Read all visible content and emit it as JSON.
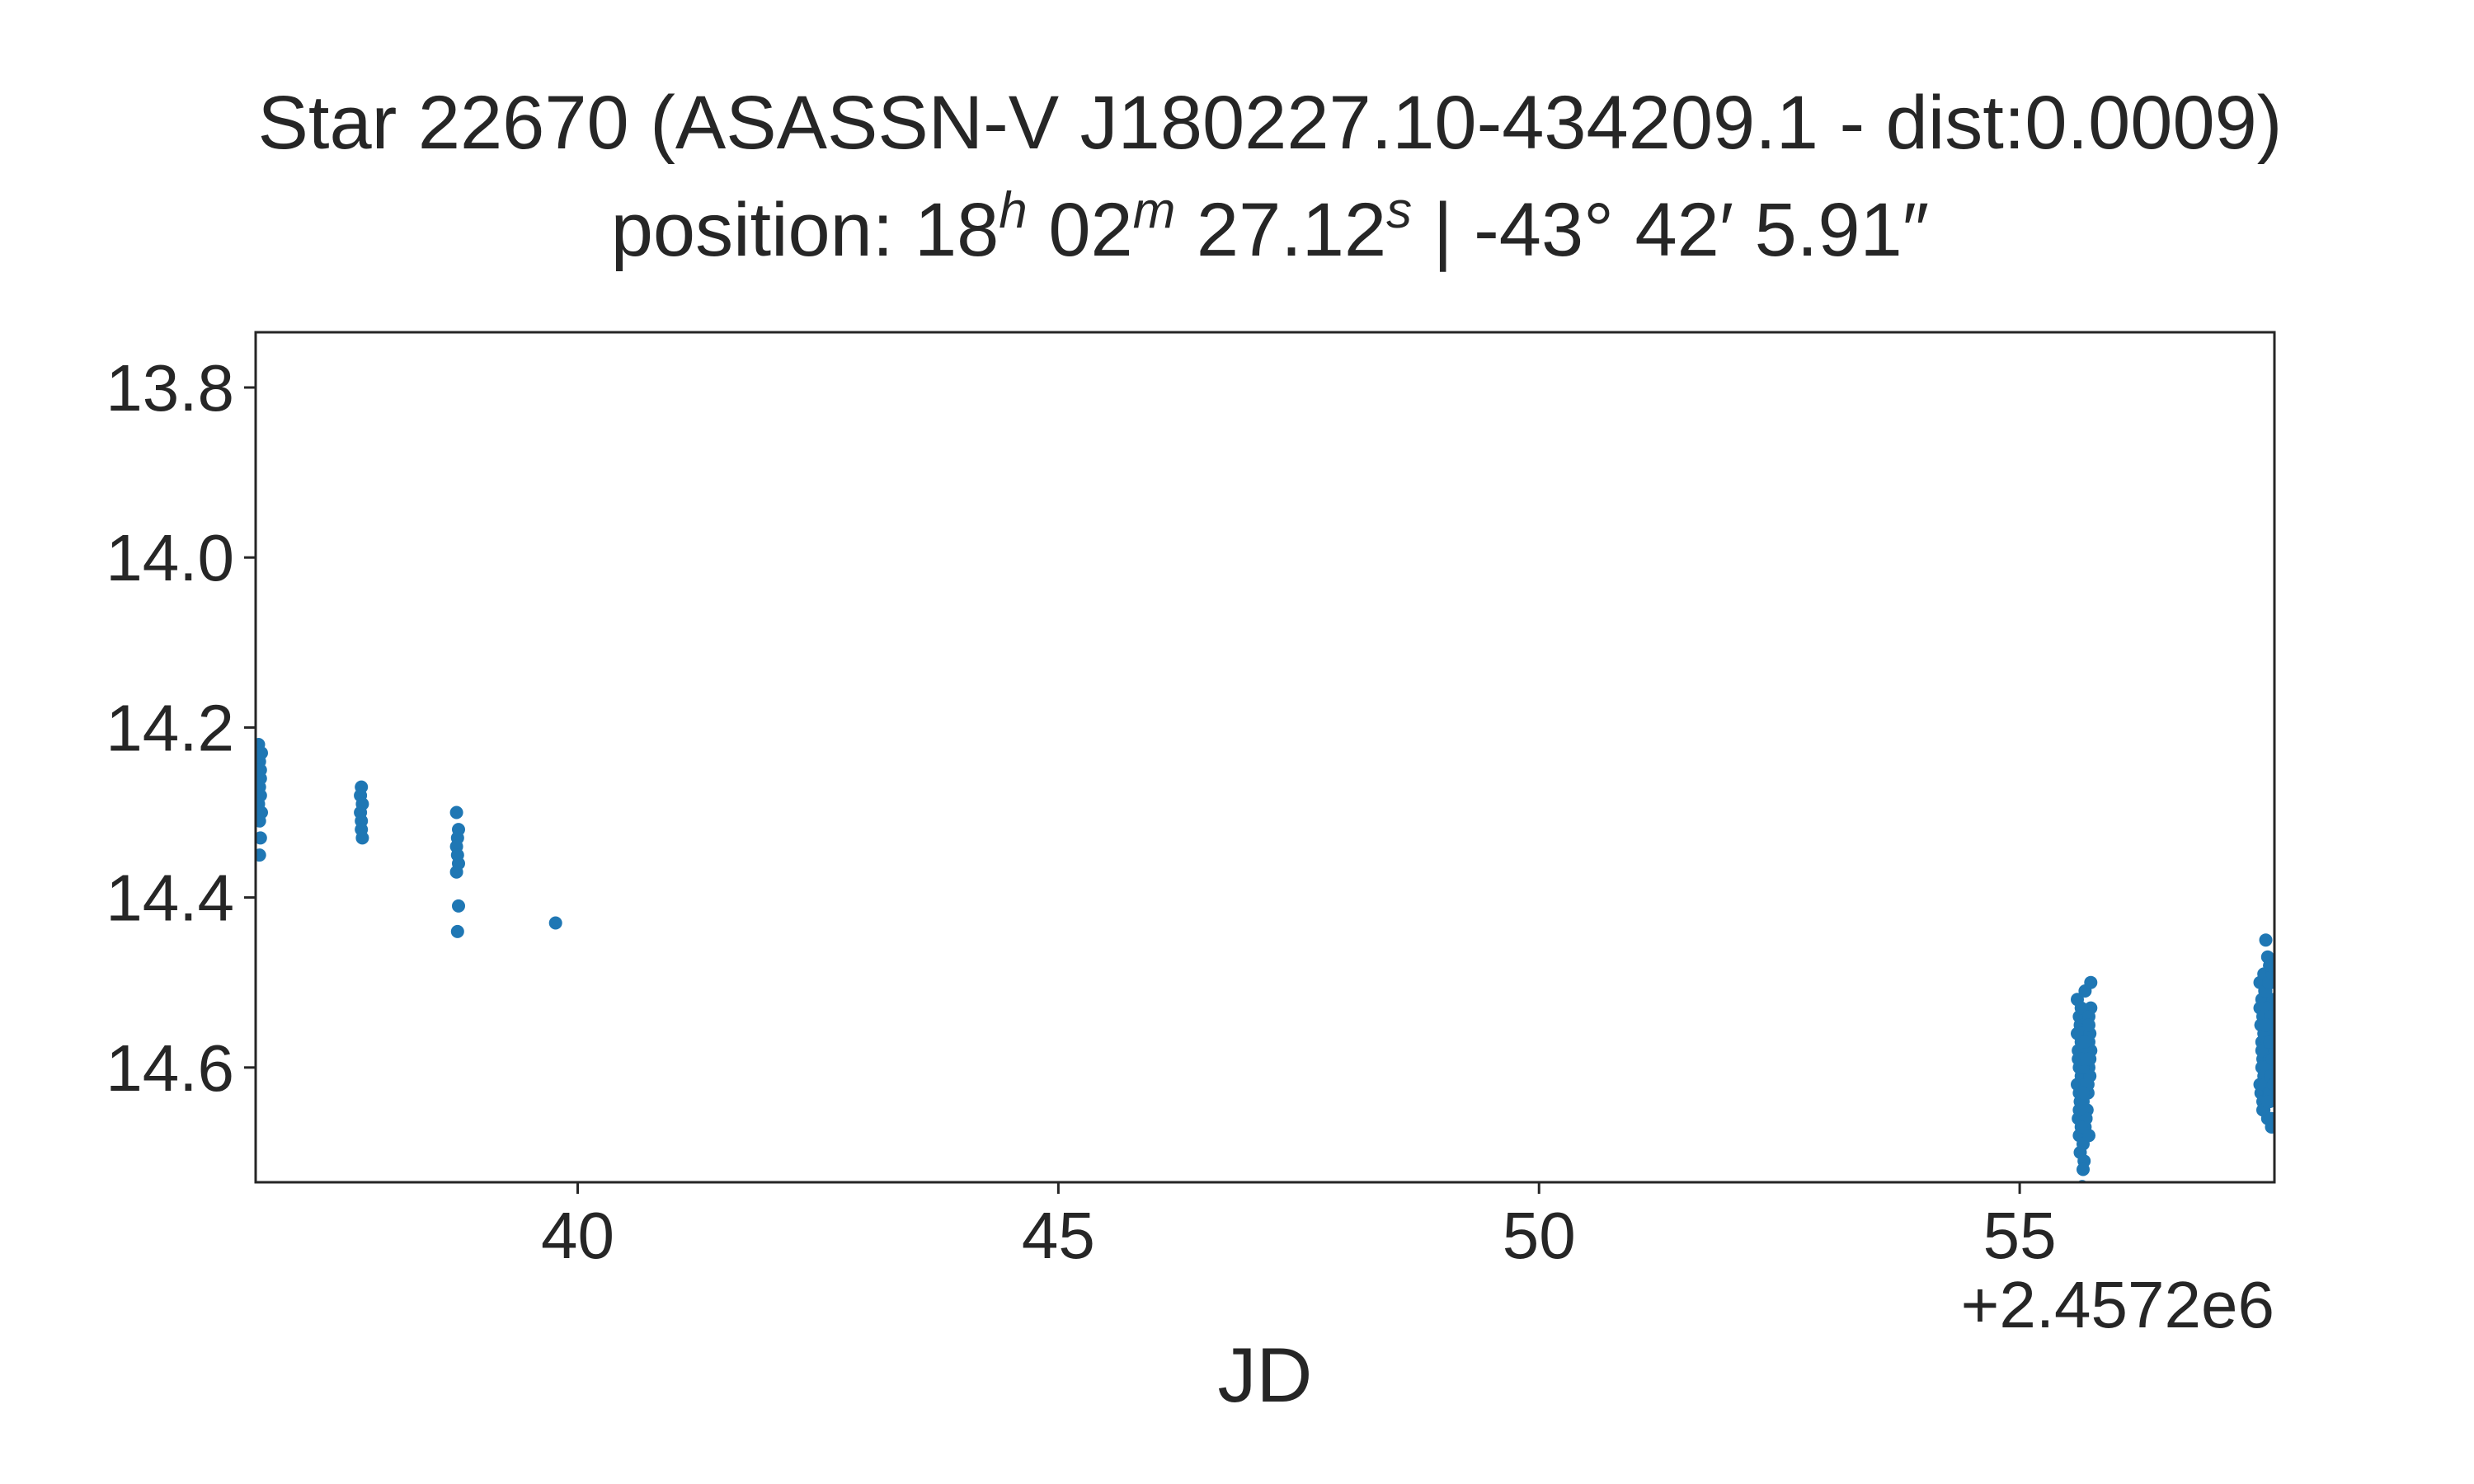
{
  "chart_data": {
    "type": "scatter",
    "title": "Star 22670 (ASASSN-V J180227.10-434209.1 - dist:0.0009)",
    "subtitle": {
      "prefix": "position: 18",
      "h": "h",
      "min_val": " 02",
      "m": "m",
      "sec_val": " 27.12",
      "s": "s",
      "dec": " | -43° 42′ 5.91″"
    },
    "xlabel": "JD",
    "ylabel": "",
    "x_offset_label": "+2.4572e6",
    "x_offset": 2457200,
    "xlim": [
      36.65,
      57.65
    ],
    "ylim": [
      14.735,
      13.735
    ],
    "y_inverted": true,
    "xticks": [
      40,
      45,
      50,
      55
    ],
    "xtick_labels": [
      "40",
      "45",
      "50",
      "55"
    ],
    "yticks": [
      13.8,
      14.0,
      14.2,
      14.4,
      14.6
    ],
    "ytick_labels": [
      "13.8",
      "14.0",
      "14.2",
      "14.4",
      "14.6"
    ],
    "grid": false,
    "marker_color": "#1f77b4",
    "series": [
      {
        "x": [
          36.68,
          36.69,
          36.7,
          36.71,
          36.69,
          36.7,
          36.68,
          36.71,
          36.7,
          36.69,
          36.7,
          36.69,
          37.74,
          37.75,
          37.76,
          37.74,
          37.75,
          37.76,
          37.75,
          38.74,
          38.75,
          38.76,
          38.74,
          38.75,
          38.76,
          38.74,
          38.76,
          38.75,
          39.77,
          55.6,
          55.61,
          55.62,
          55.63,
          55.64,
          55.65,
          55.66,
          55.67,
          55.68,
          55.69,
          55.7,
          55.71,
          55.72,
          55.73,
          55.74,
          55.6,
          55.62,
          55.64,
          55.66,
          55.68,
          55.7,
          55.72,
          55.74,
          55.61,
          55.63,
          55.65,
          55.67,
          55.69,
          55.71,
          55.73,
          55.6,
          55.62,
          55.64,
          55.66,
          55.68,
          55.7,
          55.72,
          55.74,
          55.61,
          55.63,
          55.65,
          55.67,
          55.69,
          55.71,
          55.73,
          55.62,
          55.64,
          55.66,
          55.68,
          55.7,
          55.72,
          55.63,
          55.65,
          55.67,
          55.69,
          55.71,
          55.62,
          55.66,
          55.7,
          55.64,
          55.68,
          55.66,
          55.62,
          55.64,
          55.7,
          55.72,
          55.66,
          55.65,
          57.5,
          57.51,
          57.52,
          57.53,
          57.54,
          57.55,
          57.56,
          57.57,
          57.58,
          57.59,
          57.6,
          57.61,
          57.62,
          57.63,
          57.64,
          57.5,
          57.52,
          57.54,
          57.56,
          57.58,
          57.6,
          57.62,
          57.64,
          57.51,
          57.53,
          57.55,
          57.57,
          57.59,
          57.61,
          57.63,
          57.5,
          57.52,
          57.54,
          57.56,
          57.58,
          57.6,
          57.62,
          57.64,
          57.51,
          57.53,
          57.55,
          57.57,
          57.59,
          57.61,
          57.63,
          57.52,
          57.54,
          57.56,
          57.58,
          57.6,
          57.62,
          57.53,
          57.55,
          57.57,
          57.59,
          57.61,
          57.63,
          57.58,
          57.6,
          57.62,
          57.56,
          57.58,
          57.6,
          57.54,
          57.58,
          57.62,
          57.64,
          57.56,
          57.6
        ],
        "y": [
          14.22,
          14.24,
          14.26,
          14.23,
          14.27,
          14.28,
          14.29,
          14.3,
          14.25,
          14.31,
          14.33,
          14.35,
          14.28,
          14.27,
          14.29,
          14.3,
          14.31,
          14.33,
          14.32,
          14.3,
          14.33,
          14.32,
          14.34,
          14.35,
          14.36,
          14.37,
          14.41,
          14.44,
          14.43,
          14.56,
          14.58,
          14.6,
          14.55,
          14.57,
          14.59,
          14.61,
          14.54,
          14.56,
          14.58,
          14.6,
          14.55,
          14.57,
          14.59,
          14.53,
          14.62,
          14.63,
          14.61,
          14.64,
          14.62,
          14.65,
          14.6,
          14.58,
          14.66,
          14.64,
          14.67,
          14.63,
          14.66,
          14.62,
          14.61,
          14.52,
          14.54,
          14.53,
          14.55,
          14.51,
          14.57,
          14.54,
          14.5,
          14.59,
          14.56,
          14.6,
          14.57,
          14.58,
          14.55,
          14.56,
          14.68,
          14.66,
          14.69,
          14.67,
          14.65,
          14.68,
          14.7,
          14.64,
          14.71,
          14.66,
          14.63,
          14.58,
          14.6,
          14.62,
          14.59,
          14.57,
          14.63,
          14.65,
          14.67,
          14.59,
          14.55,
          14.72,
          14.74,
          14.53,
          14.55,
          14.57,
          14.59,
          14.61,
          14.56,
          14.54,
          14.58,
          14.6,
          14.52,
          14.57,
          14.55,
          14.59,
          14.61,
          14.56,
          14.62,
          14.6,
          14.63,
          14.58,
          14.62,
          14.64,
          14.6,
          14.57,
          14.63,
          14.65,
          14.61,
          14.64,
          14.59,
          14.62,
          14.58,
          14.5,
          14.52,
          14.49,
          14.51,
          14.53,
          14.48,
          14.5,
          14.52,
          14.55,
          14.54,
          14.51,
          14.53,
          14.5,
          14.54,
          14.49,
          14.58,
          14.56,
          14.61,
          14.57,
          14.59,
          14.6,
          14.64,
          14.62,
          14.6,
          14.63,
          14.61,
          14.59,
          14.66,
          14.63,
          14.67,
          14.45,
          14.47,
          14.48,
          14.65,
          14.64,
          14.66,
          14.62,
          14.55,
          14.57
        ]
      }
    ]
  }
}
